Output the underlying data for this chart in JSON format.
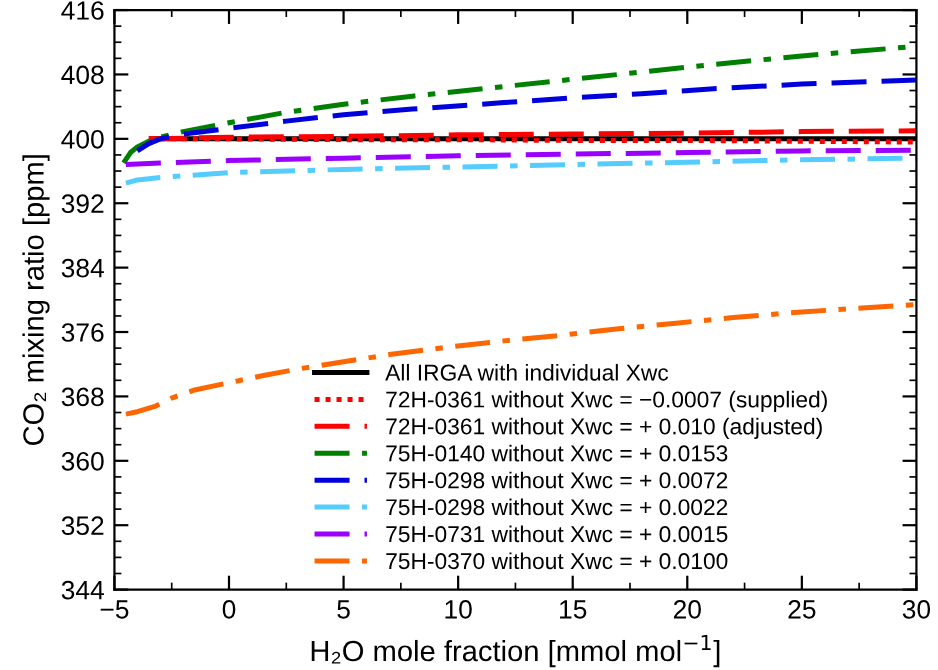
{
  "chart_data": {
    "type": "line",
    "xlabel": "H₂O mole fraction [mmol mol$^{−1}$]",
    "ylabel": "CO₂ mixing ratio [ppm]",
    "xlim": [
      -5,
      30
    ],
    "xticks": [
      {
        "value": -5,
        "label": "−5"
      },
      0,
      5,
      10,
      15,
      20,
      25,
      30
    ],
    "ylim": [
      344,
      416
    ],
    "yticks": [
      344,
      352,
      360,
      368,
      376,
      384,
      392,
      400,
      408,
      416
    ],
    "grid": false,
    "legend": "bottom right",
    "marker": "none",
    "series": [
      {
        "name": "All IRGA with individual Xwc",
        "color": "#000000",
        "line_style": "solid",
        "x": [
          -3.2,
          0,
          5,
          10,
          15,
          20,
          25,
          30
        ],
        "values": [
          400,
          400,
          400,
          400,
          400,
          400,
          400,
          400
        ]
      },
      {
        "name": "72H-0361 without Xwc = −0.0007 (supplied)",
        "color": "#ff0000",
        "line_style": "dotted",
        "x": [
          -3.5,
          0,
          5,
          10,
          15,
          20,
          25,
          30
        ],
        "values": [
          400,
          400,
          399.9,
          399.9,
          399.8,
          399.8,
          399.7,
          399.6
        ]
      },
      {
        "name": "72H-0361 without Xwc = + 0.010 (adjusted)",
        "color": "#ff0000",
        "line_style": "dashed",
        "x": [
          -3.5,
          0,
          5,
          10,
          15,
          20,
          25,
          30
        ],
        "values": [
          400,
          400.2,
          400.3,
          400.5,
          400.6,
          400.7,
          400.9,
          401
        ]
      },
      {
        "name": "75H-0140 without Xwc = + 0.0153",
        "color": "#008000",
        "line_style": "dashdot",
        "x": [
          -4.6,
          -4.3,
          -4,
          -3.5,
          -3,
          -2,
          0,
          2.5,
          5,
          8,
          12,
          15,
          18,
          21,
          25,
          30
        ],
        "values": [
          397,
          398.3,
          399,
          399.7,
          400.2,
          400.9,
          402,
          403.3,
          404.3,
          405.3,
          406.5,
          407.4,
          408.3,
          409.2,
          410.3,
          411.5
        ]
      },
      {
        "name": "75H-0298 without Xwc = + 0.0072",
        "color": "#0000dd",
        "line_style": "dashed",
        "x": [
          -4,
          -3.5,
          -3,
          -2,
          0,
          2.5,
          5,
          8,
          12,
          15,
          18,
          21,
          25,
          30
        ],
        "values": [
          398.5,
          399.4,
          400,
          400.6,
          401.3,
          402.2,
          403,
          403.7,
          404.5,
          405.1,
          405.6,
          406.2,
          406.8,
          407.3
        ]
      },
      {
        "name": "75H-0298 without Xwc = + 0.0022",
        "color": "#55ccff",
        "line_style": "dashdot",
        "x": [
          -4.5,
          -4,
          -3,
          -2,
          0,
          2.5,
          5,
          10,
          15,
          20,
          25,
          30
        ],
        "values": [
          394.5,
          394.9,
          395.2,
          395.4,
          395.8,
          396.0,
          396.2,
          396.5,
          396.8,
          397.1,
          397.4,
          397.6
        ]
      },
      {
        "name": "75H-0731 without Xwc = + 0.0015",
        "color": "#9900ff",
        "line_style": "dashed",
        "x": [
          -4.5,
          -3,
          0,
          5,
          10,
          15,
          20,
          25,
          30
        ],
        "values": [
          396.8,
          397.0,
          397.3,
          397.6,
          397.9,
          398.1,
          398.3,
          398.5,
          398.6
        ]
      },
      {
        "name": "75H-0370 without Xwc = + 0.0100",
        "color": "#ff6600",
        "line_style": "dashdot",
        "x": [
          -4.5,
          -4,
          -3.2,
          -2.5,
          -1.5,
          0,
          1.5,
          3,
          5,
          7,
          9.5,
          12,
          14.5,
          17,
          19.5,
          22,
          25,
          30
        ],
        "values": [
          365.8,
          366.1,
          366.8,
          367.8,
          368.8,
          369.7,
          370.6,
          371.4,
          372.3,
          373.2,
          374.1,
          374.9,
          375.6,
          376.4,
          377.1,
          377.8,
          378.5,
          379.4
        ]
      }
    ]
  }
}
